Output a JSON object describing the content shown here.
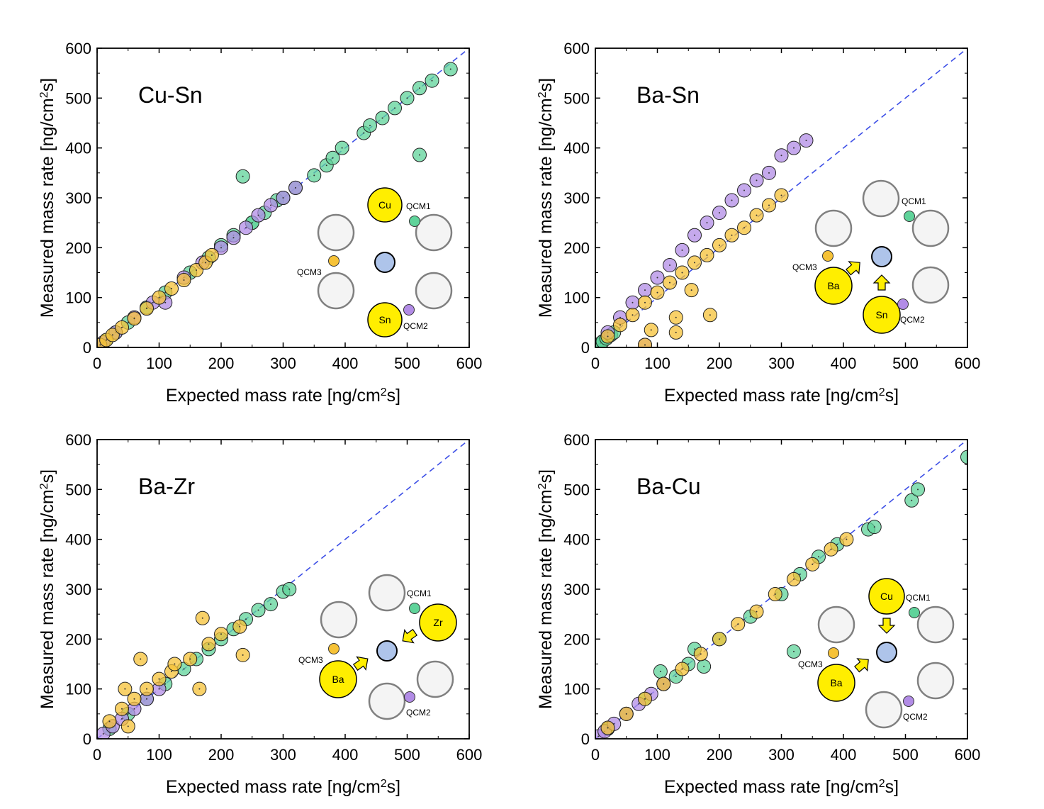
{
  "figure": {
    "axis_labels": {
      "xlabel_main": "Expected mass rate [ng/cm",
      "xlabel_sup": "2",
      "xlabel_end": "s]",
      "ylabel_main": "Measured mass rate [ng/cm",
      "ylabel_sup": "2",
      "ylabel_end": "s]"
    },
    "ticks": [
      "0",
      "100",
      "200",
      "300",
      "400",
      "500",
      "600"
    ],
    "series_colors": {
      "QCM1": "#5fd39a",
      "QCM2": "#b28ce6",
      "QCM3": "#f6c237"
    },
    "material_color": "#ffee00",
    "substrate_color": "#aec4ea",
    "empty_source_color": "#f4f4f4",
    "diagonal_color": "#3d4fe6",
    "diagram_labels": {
      "qcm1": "QCM1",
      "qcm2": "QCM2",
      "qcm3": "QCM3"
    }
  },
  "chart_data": [
    {
      "type": "scatter",
      "title": "Cu-Sn",
      "xlabel": "Expected mass rate [ng/cm2s]",
      "ylabel": "Measured mass rate [ng/cm2s]",
      "xlim": [
        0,
        600
      ],
      "ylim": [
        0,
        600
      ],
      "reference_line": "y = x",
      "sources": {
        "Cu": "Cu",
        "Sn": "Sn"
      },
      "series": [
        {
          "name": "QCM1",
          "x": [
            5,
            15,
            30,
            50,
            80,
            110,
            150,
            180,
            200,
            220,
            250,
            270,
            290,
            320,
            350,
            370,
            380,
            395,
            430,
            440,
            460,
            480,
            500,
            520,
            540,
            570,
            235,
            520,
            250,
            300
          ],
          "y": [
            5,
            15,
            30,
            50,
            80,
            110,
            150,
            180,
            205,
            225,
            250,
            270,
            295,
            320,
            345,
            365,
            380,
            400,
            430,
            445,
            460,
            480,
            500,
            520,
            535,
            558,
            343,
            386,
            250,
            300
          ]
        },
        {
          "name": "QCM2",
          "x": [
            10,
            30,
            60,
            90,
            110,
            140,
            170,
            200,
            220,
            240,
            260,
            280,
            300,
            320
          ],
          "y": [
            10,
            30,
            60,
            90,
            90,
            140,
            170,
            200,
            220,
            240,
            265,
            285,
            300,
            320
          ]
        },
        {
          "name": "QCM3",
          "x": [
            5,
            15,
            25,
            40,
            60,
            80,
            100,
            120,
            140,
            160,
            175,
            185
          ],
          "y": [
            5,
            15,
            25,
            40,
            58,
            78,
            100,
            118,
            135,
            155,
            170,
            185
          ]
        }
      ]
    },
    {
      "type": "scatter",
      "title": "Ba-Sn",
      "xlabel": "Expected mass rate [ng/cm2s]",
      "ylabel": "Measured mass rate [ng/cm2s]",
      "xlim": [
        0,
        600
      ],
      "ylim": [
        0,
        600
      ],
      "reference_line": "y = x",
      "sources": {
        "Ba": "Ba",
        "Sn": "Sn"
      },
      "series": [
        {
          "name": "QCM1",
          "x": [
            2,
            5,
            8,
            12,
            18,
            25,
            30
          ],
          "y": [
            2,
            5,
            8,
            12,
            18,
            25,
            30
          ]
        },
        {
          "name": "QCM2",
          "x": [
            20,
            40,
            60,
            80,
            100,
            120,
            140,
            160,
            180,
            200,
            220,
            240,
            260,
            280,
            300,
            320,
            340,
            80
          ],
          "y": [
            30,
            60,
            90,
            115,
            140,
            165,
            195,
            225,
            250,
            270,
            295,
            315,
            335,
            350,
            385,
            400,
            415,
            5
          ]
        },
        {
          "name": "QCM3",
          "x": [
            20,
            40,
            60,
            80,
            100,
            120,
            140,
            160,
            180,
            200,
            220,
            240,
            260,
            280,
            300,
            155,
            185,
            130,
            130,
            90,
            80
          ],
          "y": [
            22,
            45,
            65,
            90,
            110,
            130,
            150,
            170,
            185,
            205,
            225,
            240,
            265,
            285,
            305,
            115,
            65,
            60,
            30,
            35,
            5
          ]
        }
      ]
    },
    {
      "type": "scatter",
      "title": "Ba-Zr",
      "xlabel": "Expected mass rate [ng/cm2s]",
      "ylabel": "Measured mass rate [ng/cm2s]",
      "xlim": [
        0,
        600
      ],
      "ylim": [
        0,
        600
      ],
      "reference_line": "y = x",
      "sources": {
        "Ba": "Ba",
        "Zr": "Zr"
      },
      "series": [
        {
          "name": "QCM1",
          "x": [
            20,
            50,
            80,
            110,
            140,
            160,
            180,
            200,
            220,
            240,
            260,
            280,
            300,
            310
          ],
          "y": [
            20,
            50,
            80,
            110,
            140,
            160,
            180,
            200,
            220,
            240,
            258,
            270,
            295,
            300
          ]
        },
        {
          "name": "QCM2",
          "x": [
            10,
            25,
            40,
            60,
            80,
            100
          ],
          "y": [
            10,
            25,
            40,
            60,
            80,
            100
          ]
        },
        {
          "name": "QCM3",
          "x": [
            20,
            40,
            60,
            80,
            100,
            120,
            150,
            180,
            200,
            230,
            45,
            70,
            170,
            165,
            235,
            125,
            50
          ],
          "y": [
            35,
            60,
            80,
            100,
            120,
            135,
            160,
            190,
            210,
            225,
            100,
            160,
            242,
            100,
            168,
            150,
            25
          ]
        }
      ]
    },
    {
      "type": "scatter",
      "title": "Ba-Cu",
      "xlabel": "Expected mass rate [ng/cm2s]",
      "ylabel": "Measured mass rate [ng/cm2s]",
      "xlim": [
        0,
        600
      ],
      "ylim": [
        0,
        600
      ],
      "reference_line": "y = x",
      "sources": {
        "Ba": "Ba",
        "Cu": "Cu"
      },
      "series": [
        {
          "name": "QCM1",
          "x": [
            20,
            50,
            80,
            110,
            150,
            200,
            250,
            300,
            330,
            360,
            390,
            440,
            450,
            510,
            520,
            600,
            320,
            105,
            130,
            175,
            160
          ],
          "y": [
            20,
            50,
            80,
            110,
            150,
            200,
            245,
            290,
            330,
            365,
            390,
            420,
            425,
            478,
            500,
            565,
            175,
            135,
            125,
            145,
            180
          ],
          "extra": null
        },
        {
          "name": "QCM2",
          "x": [
            5,
            15,
            30,
            50,
            70,
            90,
            110
          ],
          "y": [
            5,
            15,
            30,
            50,
            70,
            90,
            110
          ]
        },
        {
          "name": "QCM3",
          "x": [
            20,
            50,
            80,
            110,
            140,
            170,
            200,
            230,
            260,
            290,
            320,
            350,
            380,
            405
          ],
          "y": [
            22,
            50,
            80,
            110,
            140,
            170,
            200,
            230,
            255,
            290,
            320,
            350,
            380,
            400
          ]
        }
      ]
    }
  ]
}
